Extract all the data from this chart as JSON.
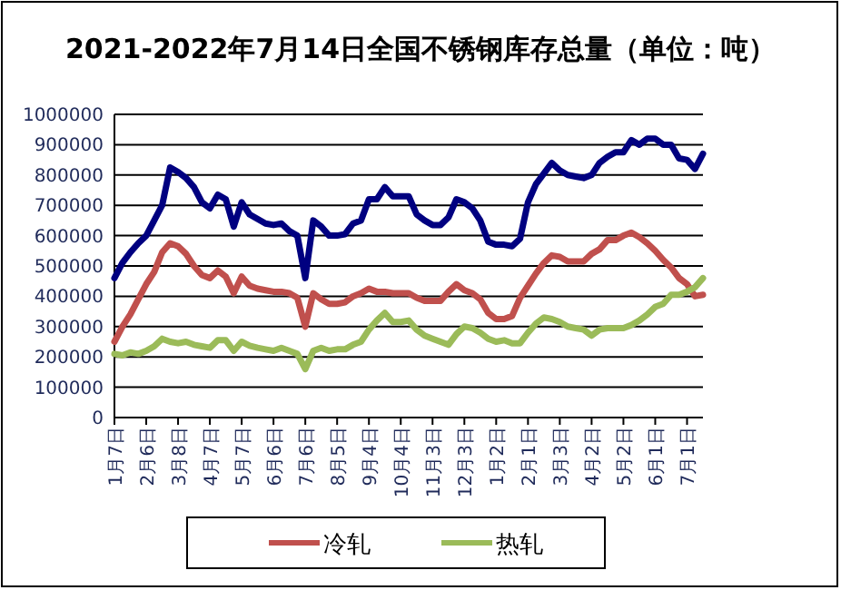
{
  "chart_data": {
    "type": "line",
    "title": "2021-2022年7月14日全国不锈钢库存总量（单位：吨）",
    "categories": [
      "1月7日",
      null,
      null,
      null,
      "2月6日",
      null,
      null,
      null,
      "3月8日",
      null,
      null,
      null,
      "4月7日",
      null,
      null,
      null,
      "5月7日",
      null,
      null,
      null,
      "6月6日",
      null,
      null,
      null,
      "7月6日",
      null,
      null,
      null,
      "8月5日",
      null,
      null,
      null,
      "9月4日",
      null,
      null,
      null,
      "10月4日",
      null,
      null,
      null,
      "11月3日",
      null,
      null,
      null,
      "12月3日",
      null,
      null,
      null,
      "1月2日",
      null,
      null,
      null,
      "2月1日",
      null,
      null,
      null,
      "3月3日",
      null,
      null,
      null,
      "4月2日",
      null,
      null,
      null,
      "5月2日",
      null,
      null,
      null,
      "6月1日",
      null,
      null,
      null,
      "7月1日",
      null,
      null
    ],
    "series": [
      {
        "color": "#000080",
        "values": [
          460000,
          510000,
          545000,
          575000,
          600000,
          650000,
          700000,
          825000,
          810000,
          790000,
          760000,
          710000,
          690000,
          735000,
          720000,
          630000,
          710000,
          670000,
          655000,
          640000,
          635000,
          640000,
          615000,
          600000,
          460000,
          650000,
          630000,
          600000,
          600000,
          605000,
          640000,
          650000,
          720000,
          720000,
          760000,
          730000,
          730000,
          730000,
          670000,
          650000,
          635000,
          635000,
          660000,
          720000,
          710000,
          690000,
          650000,
          580000,
          570000,
          570000,
          565000,
          590000,
          710000,
          770000,
          805000,
          840000,
          815000,
          800000,
          795000,
          790000,
          800000,
          840000,
          860000,
          875000,
          875000,
          915000,
          900000,
          920000,
          920000,
          900000,
          900000,
          855000,
          850000,
          820000,
          870000
        ]
      },
      {
        "name": "冷轧",
        "color": "#c0504d",
        "values": [
          250000,
          300000,
          340000,
          390000,
          440000,
          480000,
          545000,
          575000,
          565000,
          540000,
          500000,
          470000,
          460000,
          485000,
          465000,
          410000,
          465000,
          435000,
          425000,
          420000,
          415000,
          415000,
          410000,
          395000,
          300000,
          410000,
          390000,
          375000,
          375000,
          380000,
          400000,
          410000,
          425000,
          415000,
          415000,
          410000,
          410000,
          410000,
          395000,
          385000,
          385000,
          385000,
          415000,
          440000,
          420000,
          410000,
          390000,
          345000,
          325000,
          325000,
          335000,
          395000,
          435000,
          475000,
          510000,
          535000,
          530000,
          515000,
          515000,
          515000,
          540000,
          555000,
          585000,
          585000,
          600000,
          610000,
          595000,
          575000,
          550000,
          520000,
          495000,
          460000,
          440000,
          400000,
          405000
        ]
      },
      {
        "name": "热轧",
        "color": "#9bbb59",
        "values": [
          210000,
          205000,
          215000,
          210000,
          220000,
          235000,
          260000,
          250000,
          245000,
          250000,
          240000,
          235000,
          230000,
          255000,
          255000,
          220000,
          250000,
          237000,
          230000,
          225000,
          220000,
          230000,
          220000,
          210000,
          160000,
          220000,
          230000,
          220000,
          225000,
          225000,
          240000,
          250000,
          290000,
          320000,
          345000,
          315000,
          315000,
          320000,
          290000,
          270000,
          260000,
          250000,
          240000,
          275000,
          300000,
          295000,
          280000,
          260000,
          250000,
          255000,
          245000,
          245000,
          280000,
          310000,
          330000,
          325000,
          315000,
          300000,
          295000,
          290000,
          270000,
          290000,
          295000,
          295000,
          295000,
          305000,
          320000,
          340000,
          365000,
          375000,
          405000,
          405000,
          415000,
          430000,
          460000
        ]
      }
    ],
    "ylim": [
      0,
      1000000
    ],
    "yticks": [
      0,
      100000,
      200000,
      300000,
      400000,
      500000,
      600000,
      700000,
      800000,
      900000,
      1000000
    ],
    "grid": "y",
    "legend": "bottom"
  }
}
